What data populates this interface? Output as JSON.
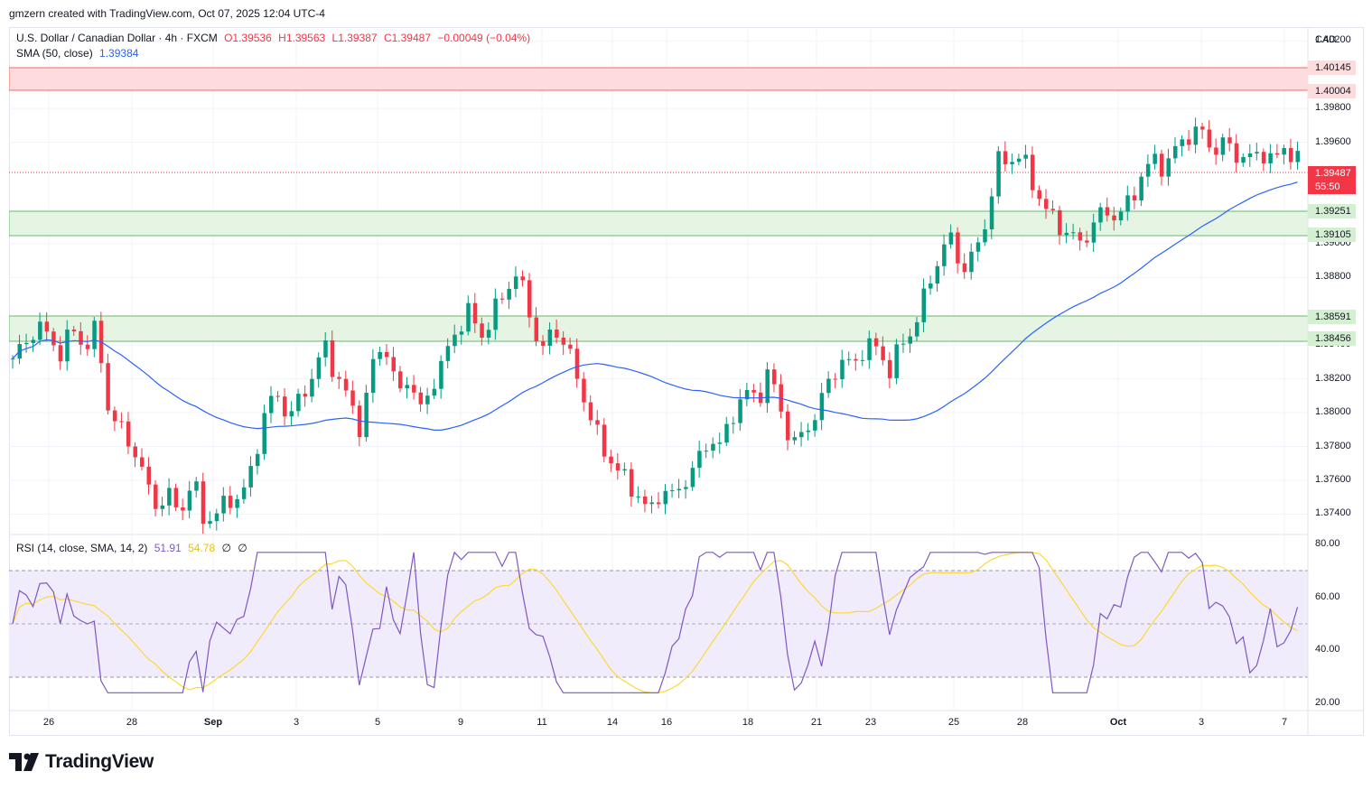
{
  "header": {
    "created_by": "gmzern created with TradingView.com, Oct 07, 2025 12:04 UTC-4"
  },
  "legend": {
    "symbol": "U.S. Dollar / Canadian Dollar · 4h · FXCM",
    "open": "O1.39536",
    "high": "H1.39563",
    "low": "L1.39387",
    "close": "C1.39487",
    "change": "−0.00049 (−0.04%)",
    "sma_label": "SMA (50, close)",
    "sma_value": "1.39384",
    "rsi_label": "RSI (14, close, SMA, 14, 2)",
    "rsi_value": "51.91",
    "rsi_sma_value": "54.78",
    "rsi_extra_1": "∅",
    "rsi_extra_2": "∅"
  },
  "price_axis": {
    "currency": "CAD",
    "labels": [
      "1.40200",
      "1.39800",
      "1.39600",
      "1.39200",
      "1.39000",
      "1.38800",
      "1.38400",
      "1.38200",
      "1.38000",
      "1.37800",
      "1.37600",
      "1.37400"
    ],
    "tags": {
      "resistance_top": "1.40145",
      "resistance_bottom": "1.40004",
      "last_price": "1.39487",
      "countdown": "55:50",
      "zone1_top": "1.39251",
      "zone1_bottom": "1.39105",
      "zone2_top": "1.38591",
      "zone2_bottom": "1.38456"
    }
  },
  "rsi_axis": {
    "labels": [
      "80.00",
      "60.00",
      "40.00",
      "20.00"
    ]
  },
  "time_axis": {
    "labels": [
      "26",
      "28",
      "Sep",
      "3",
      "5",
      "9",
      "11",
      "14",
      "16",
      "18",
      "21",
      "23",
      "25",
      "28",
      "Oct",
      "3",
      "7"
    ]
  },
  "footer": {
    "brand": "TradingView"
  },
  "colors": {
    "up": "#089981",
    "down": "#f23645",
    "sma": "#2962ff",
    "rsi": "#7e57c2",
    "rsi_sma": "#fdd835",
    "resistance_zone": "#fcdcdc",
    "support_zone": "#e3f5e1"
  },
  "chart_data": {
    "type": "candlestick",
    "symbol": "USDCAD",
    "timeframe": "4h",
    "price_range": [
      1.3729,
      1.4026
    ],
    "zones": [
      {
        "kind": "resistance",
        "top": 1.40145,
        "bottom": 1.40004
      },
      {
        "kind": "support",
        "top": 1.39251,
        "bottom": 1.39105
      },
      {
        "kind": "support",
        "top": 1.38591,
        "bottom": 1.38456
      }
    ],
    "last_price": 1.39487,
    "close_path": [
      1.3832,
      1.384,
      1.3852,
      1.3845,
      1.3835,
      1.385,
      1.3838,
      1.385,
      1.38,
      1.379,
      1.378,
      1.376,
      1.3745,
      1.375,
      1.3742,
      1.376,
      1.3735,
      1.374,
      1.375,
      1.3748,
      1.377,
      1.38,
      1.3812,
      1.3796,
      1.381,
      1.3822,
      1.384,
      1.382,
      1.3808,
      1.379,
      1.383,
      1.3842,
      1.381,
      1.3822,
      1.38,
      1.3818,
      1.3833,
      1.385,
      1.386,
      1.3845,
      1.3858,
      1.3872,
      1.3883,
      1.386,
      1.3835,
      1.385,
      1.3842,
      1.382,
      1.38,
      1.378,
      1.377,
      1.376,
      1.3752,
      1.374,
      1.3755,
      1.375,
      1.376,
      1.377,
      1.3785,
      1.378,
      1.38,
      1.3812,
      1.3808,
      1.3825,
      1.38,
      1.378,
      1.379,
      1.38,
      1.382,
      1.383,
      1.3828,
      1.384,
      1.3838,
      1.3825,
      1.384,
      1.385,
      1.387,
      1.389,
      1.3905,
      1.3885,
      1.3892,
      1.3912,
      1.3948,
      1.395,
      1.3952,
      1.3935,
      1.392,
      1.3912,
      1.3905,
      1.39,
      1.3912,
      1.392,
      1.3915,
      1.3925,
      1.394,
      1.395,
      1.3945,
      1.3958,
      1.3965,
      1.3966,
      1.3955,
      1.396,
      1.3952,
      1.395,
      1.3955,
      1.3948,
      1.3958,
      1.3949
    ],
    "sma_50_range": [
      1.3785,
      1.39384
    ],
    "rsi": {
      "period": 14,
      "value": 51.91,
      "sma": 54.78,
      "levels": {
        "upper": 70,
        "middle": 50,
        "lower": 30
      },
      "range": [
        20,
        80
      ],
      "peak_overbought": 76,
      "trough_oversold": 24
    },
    "x_tick_labels": [
      "26",
      "28",
      "Sep",
      "3",
      "5",
      "9",
      "11",
      "14",
      "16",
      "18",
      "21",
      "23",
      "25",
      "28",
      "Oct",
      "3",
      "7"
    ]
  }
}
